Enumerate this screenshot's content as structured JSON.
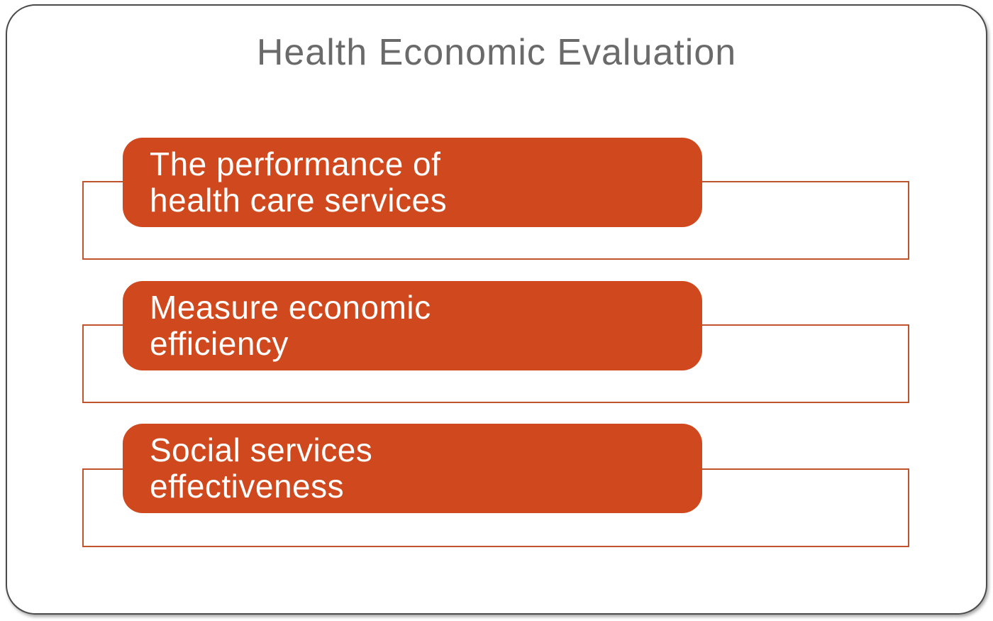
{
  "title": "Health Economic Evaluation",
  "colors": {
    "accent": "#d0491e",
    "outline": "#c0552d",
    "title_text": "#6a6a6a",
    "box_text": "#ffffff",
    "slide_border": "#4b4b4b"
  },
  "list": {
    "items": [
      {
        "label": "The performance of\nhealth care services"
      },
      {
        "label": "Measure  economic\nefficiency"
      },
      {
        "label": "Social services\neffectiveness"
      }
    ]
  }
}
